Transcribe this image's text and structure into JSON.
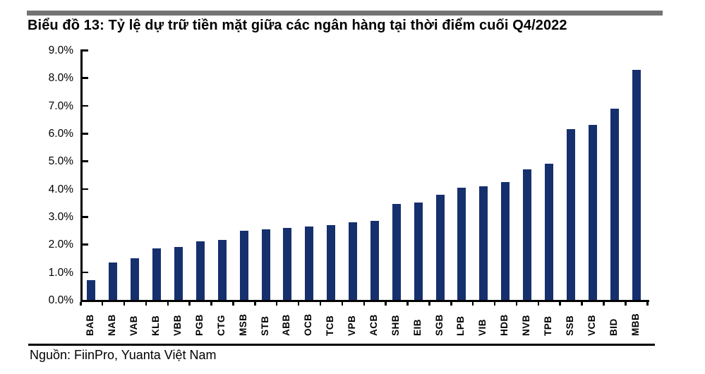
{
  "page": {
    "title": "Biểu đồ 13: Tỷ lệ dự trữ tiền mặt giữa các ngân hàng tại thời điểm cuối Q4/2022",
    "source": "Nguồn: FiinPro, Yuanta Việt Nam"
  },
  "colors": {
    "bar": "#16306E",
    "top_rule": "#737373",
    "axis": "#000000",
    "text": "#000000"
  },
  "chart_data": {
    "type": "bar",
    "title": "Biểu đồ 13: Tỷ lệ dự trữ tiền mặt giữa các ngân hàng tại thời điểm cuối Q4/2022",
    "categories": [
      "BAB",
      "NAB",
      "VAB",
      "KLB",
      "VBB",
      "PGB",
      "CTG",
      "MSB",
      "STB",
      "ABB",
      "OCB",
      "TCB",
      "VPB",
      "ACB",
      "SHB",
      "EIB",
      "SGB",
      "LPB",
      "VIB",
      "HDB",
      "NVB",
      "TPB",
      "SSB",
      "VCB",
      "BID",
      "MBB"
    ],
    "values": [
      0.7,
      1.35,
      1.5,
      1.85,
      1.9,
      2.1,
      2.15,
      2.5,
      2.55,
      2.6,
      2.65,
      2.7,
      2.8,
      2.85,
      3.45,
      3.5,
      3.8,
      4.05,
      4.1,
      4.25,
      4.7,
      4.9,
      6.15,
      6.3,
      6.9,
      8.3
    ],
    "unit": "%",
    "xlabel": "",
    "ylabel": "",
    "ylim": [
      0,
      9
    ],
    "ytick_step": 1,
    "ytick_labels": [
      "0.0%",
      "1.0%",
      "2.0%",
      "3.0%",
      "4.0%",
      "5.0%",
      "6.0%",
      "7.0%",
      "8.0%",
      "9.0%"
    ],
    "grid": false,
    "legend": null,
    "bar_color": "#16306E",
    "source": "Nguồn: FiinPro, Yuanta Việt Nam"
  }
}
